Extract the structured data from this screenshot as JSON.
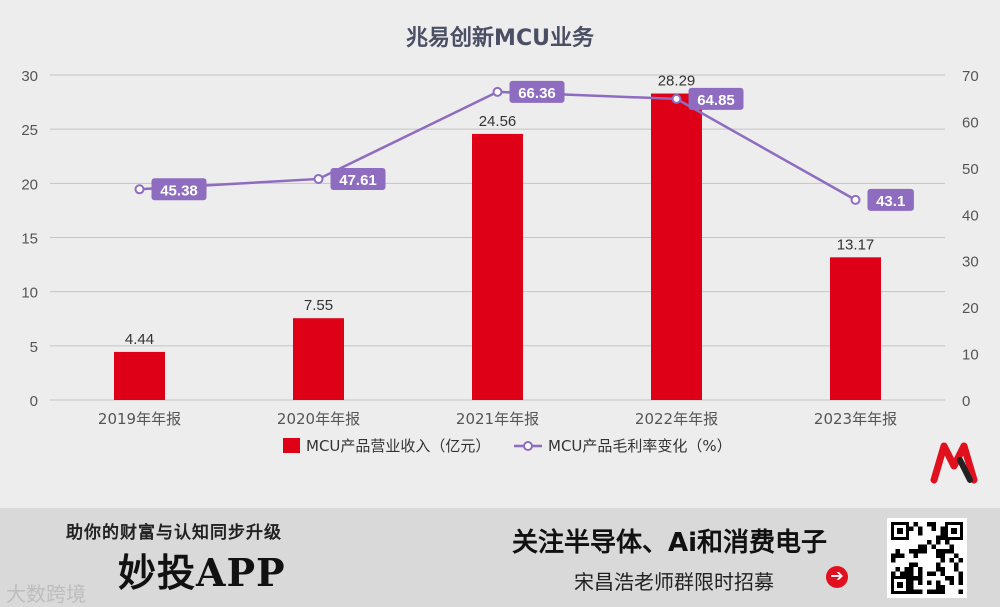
{
  "chart_data": {
    "type": "bar",
    "title": "兆易创新MCU业务",
    "categories": [
      "2019年年报",
      "2020年年报",
      "2021年年报",
      "2022年年报",
      "2023年年报"
    ],
    "series": [
      {
        "name": "MCU产品营业收入（亿元）",
        "type": "bar",
        "axis": "left",
        "color": "#dd0017",
        "values": [
          4.44,
          7.55,
          24.56,
          28.29,
          13.17
        ],
        "labels": [
          "4.44",
          "7.55",
          "24.56",
          "28.29",
          "13.17"
        ]
      },
      {
        "name": "MCU产品毛利率变化（%）",
        "type": "line",
        "axis": "right",
        "color": "#8e6cc0",
        "values": [
          45.38,
          47.61,
          66.36,
          64.85,
          43.1
        ],
        "labels": [
          "45.38",
          "47.61",
          "66.36",
          "64.85",
          "43.1"
        ]
      }
    ],
    "y_left": {
      "min": 0,
      "max": 30,
      "ticks": [
        "0",
        "5",
        "10",
        "15",
        "20",
        "25",
        "30"
      ]
    },
    "y_right": {
      "min": 0,
      "max": 70,
      "ticks": [
        "0",
        "10",
        "20",
        "30",
        "40",
        "50",
        "60",
        "70"
      ]
    },
    "grid": true,
    "legend_position": "bottom"
  },
  "banner": {
    "slogan": "助你的财富与认知同步升级",
    "app_name": "妙投APP",
    "headline": "关注半导体、Ai和消费电子",
    "recruit": "宋昌浩老师群限时招募",
    "watermark": "大数跨境"
  }
}
